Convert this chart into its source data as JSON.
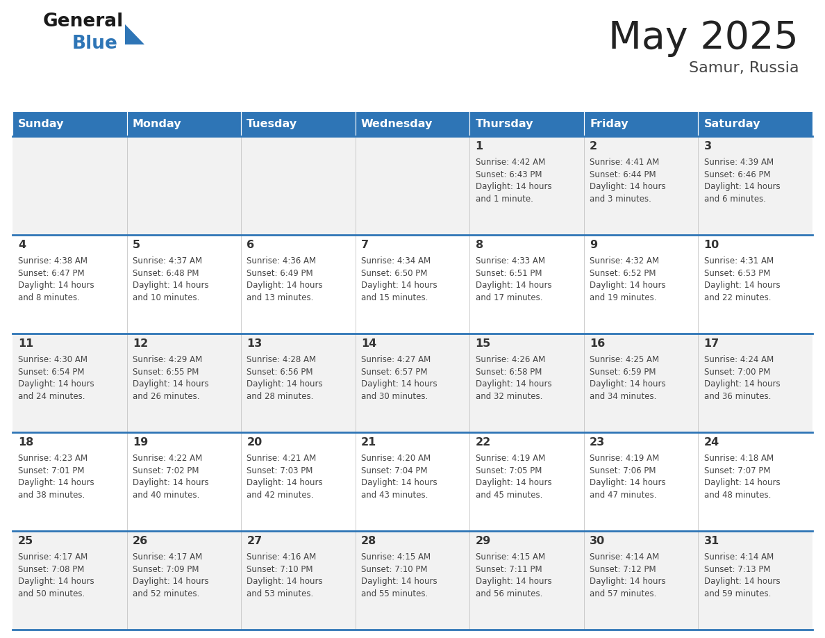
{
  "title": "May 2025",
  "subtitle": "Samur, Russia",
  "days_of_week": [
    "Sunday",
    "Monday",
    "Tuesday",
    "Wednesday",
    "Thursday",
    "Friday",
    "Saturday"
  ],
  "header_bg": "#2E75B6",
  "header_text": "#FFFFFF",
  "cell_bg_even": "#F2F2F2",
  "cell_bg_odd": "#FFFFFF",
  "cell_border": "#2E75B6",
  "day_num_color": "#333333",
  "text_color": "#444444",
  "title_color": "#222222",
  "subtitle_color": "#444444",
  "logo_general_color": "#1a1a1a",
  "logo_blue_color": "#2E75B6",
  "calendar_data": [
    [
      {
        "day": null,
        "sunrise": null,
        "sunset": null,
        "daylight": null
      },
      {
        "day": null,
        "sunrise": null,
        "sunset": null,
        "daylight": null
      },
      {
        "day": null,
        "sunrise": null,
        "sunset": null,
        "daylight": null
      },
      {
        "day": null,
        "sunrise": null,
        "sunset": null,
        "daylight": null
      },
      {
        "day": 1,
        "sunrise": "4:42 AM",
        "sunset": "6:43 PM",
        "daylight": "14 hours\nand 1 minute."
      },
      {
        "day": 2,
        "sunrise": "4:41 AM",
        "sunset": "6:44 PM",
        "daylight": "14 hours\nand 3 minutes."
      },
      {
        "day": 3,
        "sunrise": "4:39 AM",
        "sunset": "6:46 PM",
        "daylight": "14 hours\nand 6 minutes."
      }
    ],
    [
      {
        "day": 4,
        "sunrise": "4:38 AM",
        "sunset": "6:47 PM",
        "daylight": "14 hours\nand 8 minutes."
      },
      {
        "day": 5,
        "sunrise": "4:37 AM",
        "sunset": "6:48 PM",
        "daylight": "14 hours\nand 10 minutes."
      },
      {
        "day": 6,
        "sunrise": "4:36 AM",
        "sunset": "6:49 PM",
        "daylight": "14 hours\nand 13 minutes."
      },
      {
        "day": 7,
        "sunrise": "4:34 AM",
        "sunset": "6:50 PM",
        "daylight": "14 hours\nand 15 minutes."
      },
      {
        "day": 8,
        "sunrise": "4:33 AM",
        "sunset": "6:51 PM",
        "daylight": "14 hours\nand 17 minutes."
      },
      {
        "day": 9,
        "sunrise": "4:32 AM",
        "sunset": "6:52 PM",
        "daylight": "14 hours\nand 19 minutes."
      },
      {
        "day": 10,
        "sunrise": "4:31 AM",
        "sunset": "6:53 PM",
        "daylight": "14 hours\nand 22 minutes."
      }
    ],
    [
      {
        "day": 11,
        "sunrise": "4:30 AM",
        "sunset": "6:54 PM",
        "daylight": "14 hours\nand 24 minutes."
      },
      {
        "day": 12,
        "sunrise": "4:29 AM",
        "sunset": "6:55 PM",
        "daylight": "14 hours\nand 26 minutes."
      },
      {
        "day": 13,
        "sunrise": "4:28 AM",
        "sunset": "6:56 PM",
        "daylight": "14 hours\nand 28 minutes."
      },
      {
        "day": 14,
        "sunrise": "4:27 AM",
        "sunset": "6:57 PM",
        "daylight": "14 hours\nand 30 minutes."
      },
      {
        "day": 15,
        "sunrise": "4:26 AM",
        "sunset": "6:58 PM",
        "daylight": "14 hours\nand 32 minutes."
      },
      {
        "day": 16,
        "sunrise": "4:25 AM",
        "sunset": "6:59 PM",
        "daylight": "14 hours\nand 34 minutes."
      },
      {
        "day": 17,
        "sunrise": "4:24 AM",
        "sunset": "7:00 PM",
        "daylight": "14 hours\nand 36 minutes."
      }
    ],
    [
      {
        "day": 18,
        "sunrise": "4:23 AM",
        "sunset": "7:01 PM",
        "daylight": "14 hours\nand 38 minutes."
      },
      {
        "day": 19,
        "sunrise": "4:22 AM",
        "sunset": "7:02 PM",
        "daylight": "14 hours\nand 40 minutes."
      },
      {
        "day": 20,
        "sunrise": "4:21 AM",
        "sunset": "7:03 PM",
        "daylight": "14 hours\nand 42 minutes."
      },
      {
        "day": 21,
        "sunrise": "4:20 AM",
        "sunset": "7:04 PM",
        "daylight": "14 hours\nand 43 minutes."
      },
      {
        "day": 22,
        "sunrise": "4:19 AM",
        "sunset": "7:05 PM",
        "daylight": "14 hours\nand 45 minutes."
      },
      {
        "day": 23,
        "sunrise": "4:19 AM",
        "sunset": "7:06 PM",
        "daylight": "14 hours\nand 47 minutes."
      },
      {
        "day": 24,
        "sunrise": "4:18 AM",
        "sunset": "7:07 PM",
        "daylight": "14 hours\nand 48 minutes."
      }
    ],
    [
      {
        "day": 25,
        "sunrise": "4:17 AM",
        "sunset": "7:08 PM",
        "daylight": "14 hours\nand 50 minutes."
      },
      {
        "day": 26,
        "sunrise": "4:17 AM",
        "sunset": "7:09 PM",
        "daylight": "14 hours\nand 52 minutes."
      },
      {
        "day": 27,
        "sunrise": "4:16 AM",
        "sunset": "7:10 PM",
        "daylight": "14 hours\nand 53 minutes."
      },
      {
        "day": 28,
        "sunrise": "4:15 AM",
        "sunset": "7:10 PM",
        "daylight": "14 hours\nand 55 minutes."
      },
      {
        "day": 29,
        "sunrise": "4:15 AM",
        "sunset": "7:11 PM",
        "daylight": "14 hours\nand 56 minutes."
      },
      {
        "day": 30,
        "sunrise": "4:14 AM",
        "sunset": "7:12 PM",
        "daylight": "14 hours\nand 57 minutes."
      },
      {
        "day": 31,
        "sunrise": "4:14 AM",
        "sunset": "7:13 PM",
        "daylight": "14 hours\nand 59 minutes."
      }
    ]
  ]
}
